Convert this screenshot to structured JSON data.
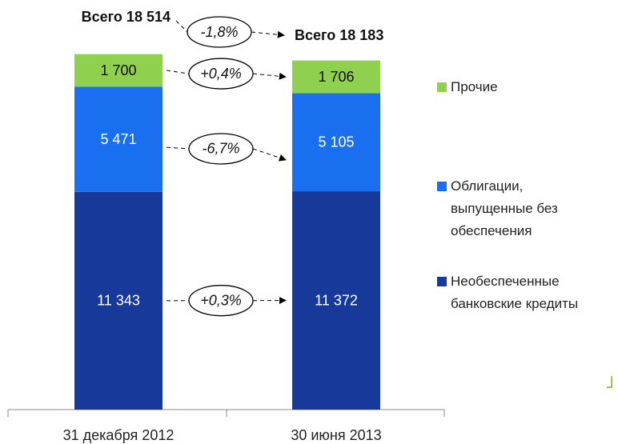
{
  "chart_data": {
    "type": "stacked-bar",
    "categories": [
      "31 декабря 2012",
      "30 июня 2013"
    ],
    "series": [
      {
        "name": "Необеспеченные банковские кредиты",
        "color": "#173a9a",
        "values": [
          11343,
          11372
        ],
        "value_labels": [
          "11 343",
          "11 372"
        ]
      },
      {
        "name": "Облигации, выпущенные без обеспечения",
        "color": "#1a6ff0",
        "values": [
          5471,
          5105
        ],
        "value_labels": [
          "5 471",
          "5 105"
        ]
      },
      {
        "name": "Прочие",
        "color": "#8fd14f",
        "values": [
          1700,
          1706
        ],
        "value_labels": [
          "1 700",
          "1 706"
        ]
      }
    ],
    "totals": [
      "Всего 18 514",
      "Всего 18 183"
    ],
    "changes": [
      "-1,8%",
      "+0,3%",
      "-6,7%",
      "+0,4%"
    ]
  }
}
